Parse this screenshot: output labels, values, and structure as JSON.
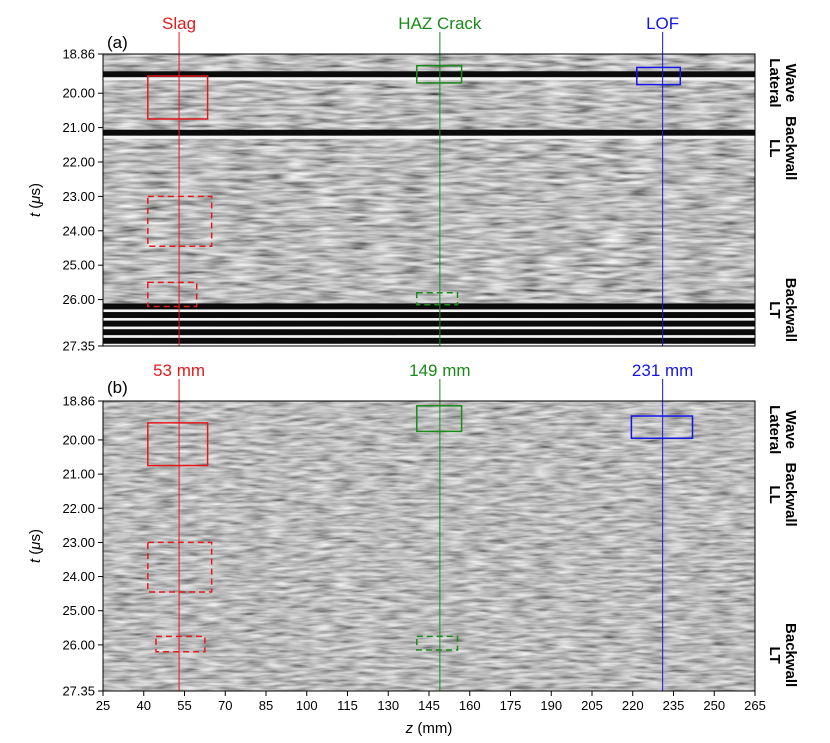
{
  "chart_data": {
    "type": "heatmap",
    "x_label": {
      "var": "z",
      "unit": " (mm)"
    },
    "y_label": {
      "var": "t",
      "unit_open": " (",
      "mu": "μ",
      "unit_close": "s)"
    },
    "xlim": [
      25,
      265
    ],
    "ylim": [
      18.86,
      27.35
    ],
    "xticks": [
      "25",
      "40",
      "55",
      "70",
      "85",
      "100",
      "115",
      "130",
      "145",
      "160",
      "175",
      "190",
      "205",
      "220",
      "235",
      "250",
      "265"
    ],
    "yticks": [
      "18.86",
      "20.00",
      "21.00",
      "22.00",
      "23.00",
      "24.00",
      "25.00",
      "26.00",
      "27.35"
    ],
    "colors": {
      "slag": "#e31a1c",
      "haz": "#1a8a1a",
      "lof": "#1515e6"
    },
    "defects": [
      {
        "key": "slag",
        "name": "Slag",
        "z": 53,
        "z_label": "53 mm",
        "color": "#e31a1c"
      },
      {
        "key": "haz",
        "name": "HAZ Crack",
        "z": 149,
        "z_label": "149 mm",
        "color": "#1a8a1a"
      },
      {
        "key": "lof",
        "name": "LOF",
        "z": 231,
        "z_label": "231 mm",
        "color": "#1515e6"
      }
    ],
    "panels": [
      {
        "label": "(a)",
        "bands": [
          19.45,
          21.15,
          26.2,
          26.45,
          26.7,
          26.95,
          27.2
        ],
        "boxes": [
          {
            "defect": "slag",
            "style": "solid",
            "z0": 41.5,
            "z1": 63.5,
            "t0": 19.5,
            "t1": 20.75
          },
          {
            "defect": "slag",
            "style": "dashed",
            "z0": 41.5,
            "z1": 65.0,
            "t0": 23.0,
            "t1": 24.45
          },
          {
            "defect": "slag",
            "style": "dashed",
            "z0": 41.5,
            "z1": 59.5,
            "t0": 25.5,
            "t1": 26.2
          },
          {
            "defect": "haz",
            "style": "solid",
            "z0": 140.5,
            "z1": 157.0,
            "t0": 19.2,
            "t1": 19.7
          },
          {
            "defect": "haz",
            "style": "dashed",
            "z0": 140.5,
            "z1": 155.5,
            "t0": 25.8,
            "t1": 26.15
          },
          {
            "defect": "lof",
            "style": "solid",
            "z0": 221.5,
            "z1": 237.5,
            "t0": 19.25,
            "t1": 19.75
          }
        ]
      },
      {
        "label": "(b)",
        "bands": [],
        "boxes": [
          {
            "defect": "slag",
            "style": "solid",
            "z0": 41.5,
            "z1": 63.5,
            "t0": 19.5,
            "t1": 20.75
          },
          {
            "defect": "slag",
            "style": "dashed",
            "z0": 41.5,
            "z1": 65.0,
            "t0": 23.0,
            "t1": 24.45
          },
          {
            "defect": "slag",
            "style": "dashed",
            "z0": 44.5,
            "z1": 62.5,
            "t0": 25.75,
            "t1": 26.2
          },
          {
            "defect": "haz",
            "style": "solid",
            "z0": 140.5,
            "z1": 157.0,
            "t0": 19.0,
            "t1": 19.75
          },
          {
            "defect": "haz",
            "style": "dashed",
            "z0": 140.5,
            "z1": 155.5,
            "t0": 25.75,
            "t1": 26.15
          },
          {
            "defect": "lof",
            "style": "solid",
            "z0": 219.5,
            "z1": 242.0,
            "t0": 19.3,
            "t1": 19.95
          }
        ]
      }
    ],
    "side_labels": [
      {
        "panel": 0,
        "lines": [
          "Lateral",
          "Wave"
        ],
        "t": 19.7
      },
      {
        "panel": 0,
        "lines": [
          "LL",
          "Backwall"
        ],
        "t": 21.6
      },
      {
        "panel": 0,
        "lines": [
          "LT",
          "Backwall"
        ],
        "t": 26.3
      },
      {
        "panel": 1,
        "lines": [
          "Lateral",
          "Wave"
        ],
        "t": 19.7
      },
      {
        "panel": 1,
        "lines": [
          "LL",
          "Backwall"
        ],
        "t": 21.6
      },
      {
        "panel": 1,
        "lines": [
          "LT",
          "Backwall"
        ],
        "t": 26.3
      }
    ]
  }
}
